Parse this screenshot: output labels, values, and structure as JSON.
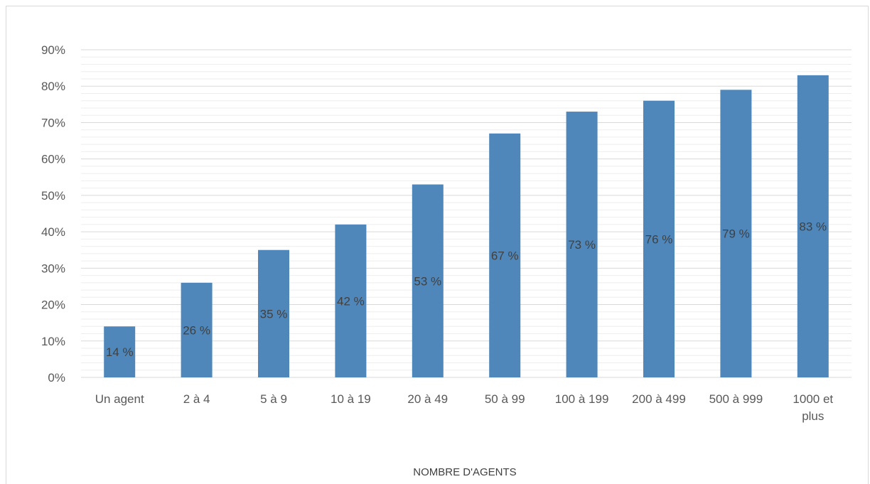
{
  "chart_data": {
    "type": "bar",
    "title": "",
    "xlabel": "NOMBRE D'AGENTS",
    "ylabel": "",
    "categories": [
      [
        "Un agent"
      ],
      [
        "2 à 4"
      ],
      [
        "5 à 9"
      ],
      [
        "10 à 19"
      ],
      [
        "20 à 49"
      ],
      [
        "50 à 99"
      ],
      [
        "100 à 199"
      ],
      [
        "200 à 499"
      ],
      [
        "500 à 999"
      ],
      [
        "1000 et",
        "plus"
      ]
    ],
    "values": [
      14,
      26,
      35,
      42,
      53,
      67,
      73,
      76,
      79,
      83
    ],
    "data_labels": [
      "14 %",
      "26 %",
      "35 %",
      "42 %",
      "53 %",
      "67 %",
      "73 %",
      "76 %",
      "79 %",
      "83 %"
    ],
    "ylim": [
      0,
      90
    ],
    "yticks": [
      0,
      10,
      20,
      30,
      40,
      50,
      60,
      70,
      80,
      90
    ],
    "ytick_labels": [
      "0%",
      "10%",
      "20%",
      "30%",
      "40%",
      "50%",
      "60%",
      "70%",
      "80%",
      "90%"
    ],
    "grid": true,
    "minor_grid": true,
    "legend": "none",
    "colors": {
      "bar": "#4f87bb",
      "major_grid": "#d9d9d9",
      "minor_grid": "#eeeeee",
      "axis_text": "#595959",
      "label_text": "#404040"
    }
  }
}
